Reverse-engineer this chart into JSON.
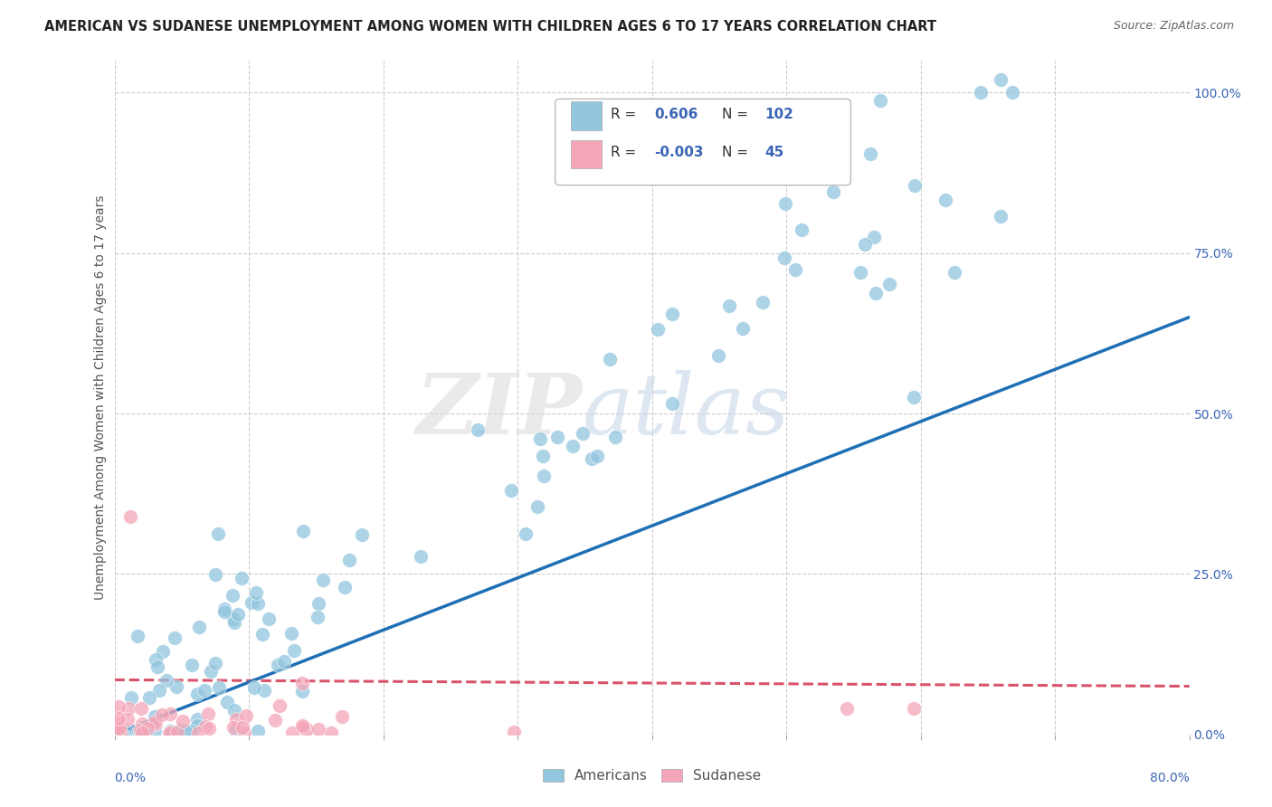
{
  "title": "AMERICAN VS SUDANESE UNEMPLOYMENT AMONG WOMEN WITH CHILDREN AGES 6 TO 17 YEARS CORRELATION CHART",
  "source": "Source: ZipAtlas.com",
  "ylabel": "Unemployment Among Women with Children Ages 6 to 17 years",
  "watermark_zip": "ZIP",
  "watermark_atlas": "atlas",
  "legend_american_R": "0.606",
  "legend_american_N": "102",
  "legend_sudanese_R": "-0.003",
  "legend_sudanese_N": "45",
  "american_color": "#92c5de",
  "sudanese_color": "#f4a6b8",
  "regression_american_color": "#1f6fb5",
  "regression_sudanese_color": "#d9536a",
  "xlim": [
    0,
    0.8
  ],
  "ylim": [
    0,
    1.05
  ],
  "background_color": "#ffffff",
  "grid_color": "#cccccc",
  "american_seed": 42,
  "sudanese_seed": 7
}
